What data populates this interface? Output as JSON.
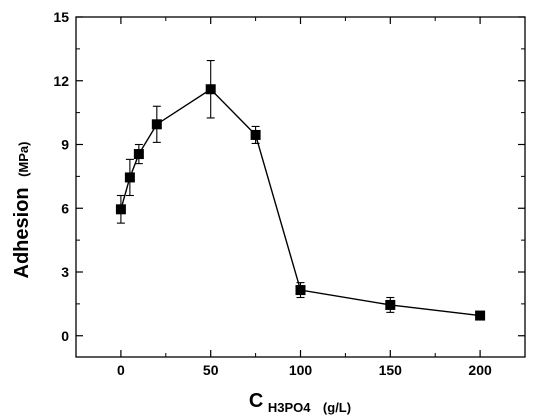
{
  "chart_data": {
    "type": "line",
    "x_axis": {
      "label_main": "C",
      "label_sub": "H3PO4",
      "label_unit": "(g/L)",
      "range": [
        -25,
        225
      ],
      "ticks": [
        0,
        50,
        100,
        150,
        200
      ],
      "minor_step": 25
    },
    "y_axis": {
      "label_main": "Adhesion",
      "label_unit": "(MPa)",
      "range": [
        -1,
        15
      ],
      "ticks": [
        0,
        3,
        6,
        9,
        12,
        15
      ],
      "minor_step": 1.5
    },
    "series": [
      {
        "marker": "square",
        "color": "#000000",
        "points": [
          {
            "x": 0,
            "y": 5.95,
            "err": 0.65
          },
          {
            "x": 5,
            "y": 7.45,
            "err": 0.85
          },
          {
            "x": 10,
            "y": 8.55,
            "err": 0.45
          },
          {
            "x": 20,
            "y": 9.95,
            "err": 0.85
          },
          {
            "x": 50,
            "y": 11.6,
            "err": 1.35
          },
          {
            "x": 75,
            "y": 9.45,
            "err": 0.4
          },
          {
            "x": 100,
            "y": 2.15,
            "err": 0.35
          },
          {
            "x": 150,
            "y": 1.45,
            "err": 0.35
          },
          {
            "x": 200,
            "y": 0.95,
            "err": 0.1
          }
        ]
      }
    ],
    "grid": false,
    "legend": "none"
  }
}
